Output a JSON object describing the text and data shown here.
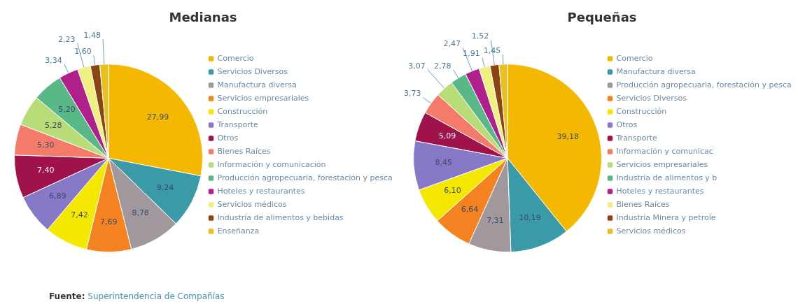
{
  "chart_data": [
    {
      "type": "pie",
      "title": "Medianas",
      "categories": [
        "Comercio",
        "Servicios Diversos",
        "Manufactura diversa",
        "Servicios empresariales",
        "Construcción",
        "Transporte",
        "Otros",
        "Bienes Raíces",
        "Información y comunicación",
        "Producción agropecuaria, forestación y pesca",
        "Hoteles y restaurantes",
        "Servicios médicos",
        "Industria de alimentos y bebidas",
        "Enseñanza"
      ],
      "values": [
        27.99,
        9.24,
        8.78,
        7.69,
        7.42,
        6.89,
        7.4,
        5.3,
        5.28,
        5.2,
        3.34,
        2.23,
        1.6,
        1.48
      ],
      "value_labels": [
        "27,99",
        "9,24",
        "8,78",
        "7,69",
        "7,42",
        "6,89",
        "7,40",
        "5,30",
        "5,28",
        "5,20",
        "3,34",
        "2,23",
        "1,60",
        "1,48"
      ],
      "colors": [
        "#f5b800",
        "#3a9aa8",
        "#a0989c",
        "#f58220",
        "#f5e800",
        "#8878c8",
        "#a0124a",
        "#f47a6a",
        "#b8dc78",
        "#58b888",
        "#b0208c",
        "#f0f080",
        "#8b4513",
        "#e8c020"
      ],
      "legend": "right",
      "annotations": [
        "Fuente: Superintendencia de Compañías"
      ]
    },
    {
      "type": "pie",
      "title": "Pequeñas",
      "categories": [
        "Comercio",
        "Manufactura diversa",
        "Producción agropecuaria, forestación y pesca",
        "Servicios Diversos",
        "Construcción",
        "Otros",
        "Transporte",
        "Información y comunicac",
        "Servicios empresariales",
        "Industria de alimentos y b",
        "Hoteles y restaurantes",
        "Bienes Raíces",
        "Industria Minera y petrole",
        "Servicios médicos"
      ],
      "values": [
        39.18,
        10.19,
        7.31,
        6.64,
        6.1,
        8.45,
        5.09,
        3.73,
        3.07,
        2.78,
        2.47,
        1.91,
        1.52,
        1.45
      ],
      "value_labels": [
        "39,18",
        "10,19",
        "7,31",
        "6,64",
        "6,10",
        "8,45",
        "5,09",
        "3,73",
        "3,07",
        "2,78",
        "2,47",
        "1,91",
        "1,52",
        "1,45"
      ],
      "colors": [
        "#f5b800",
        "#3a9aa8",
        "#a0989c",
        "#f58220",
        "#f5e800",
        "#8878c8",
        "#a0124a",
        "#f47a6a",
        "#b8dc78",
        "#58b888",
        "#b0208c",
        "#f0f080",
        "#8b4513",
        "#e8c020"
      ],
      "legend": "right"
    }
  ]
}
